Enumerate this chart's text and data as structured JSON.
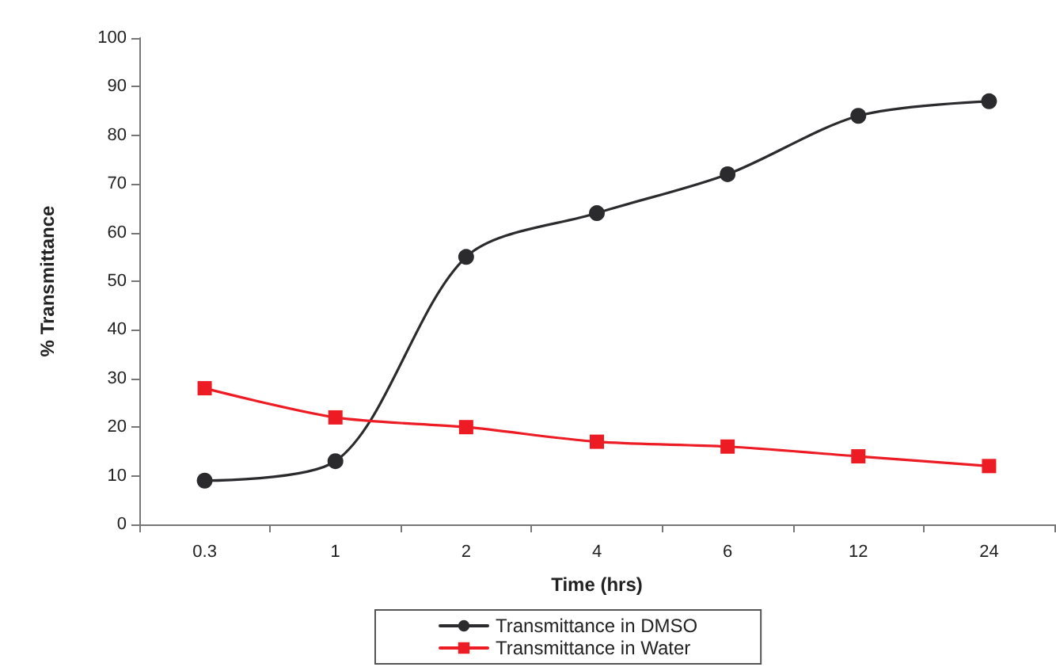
{
  "chart_data": {
    "type": "line",
    "xlabel": "Time (hrs)",
    "ylabel": "% Transmittance",
    "categories": [
      "0.3",
      "1",
      "2",
      "4",
      "6",
      "12",
      "24"
    ],
    "series": [
      {
        "name": "Transmittance in DMSO",
        "color": "#2b2b2e",
        "marker": "circle",
        "values": [
          9,
          13,
          55,
          64,
          72,
          84,
          87
        ]
      },
      {
        "name": "Transmittance in Water",
        "color": "#ed1c24",
        "marker": "square",
        "values": [
          28,
          22,
          20,
          17,
          16,
          14,
          12
        ]
      }
    ],
    "ylim": [
      0,
      100
    ],
    "yticks": [
      0,
      10,
      20,
      30,
      40,
      50,
      60,
      70,
      80,
      90,
      100
    ],
    "grid": false,
    "legend": "bottom",
    "line_style": "solid"
  }
}
